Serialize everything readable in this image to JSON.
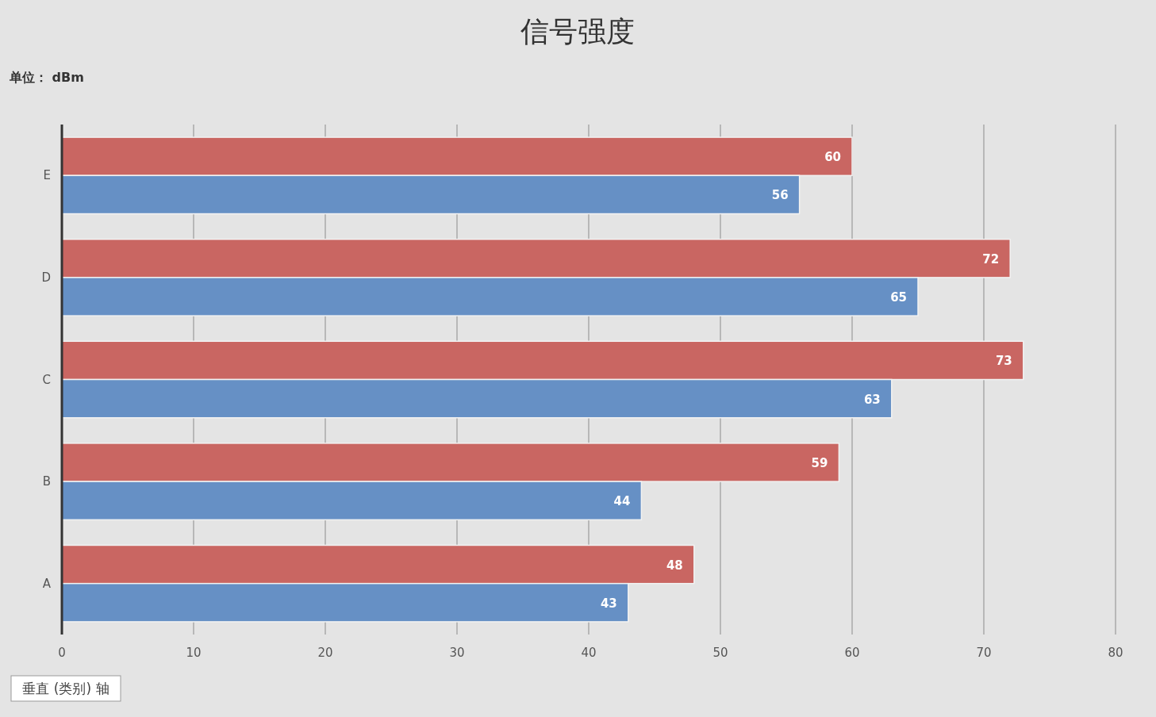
{
  "chart_data": {
    "type": "bar",
    "orientation": "horizontal",
    "title": "信号强度",
    "subtitle": "单位： dBm",
    "categories": [
      "E",
      "D",
      "C",
      "B",
      "A"
    ],
    "series": [
      {
        "color": "#c96662",
        "values": [
          60,
          72,
          73,
          59,
          48
        ]
      },
      {
        "color": "#6690c5",
        "values": [
          56,
          65,
          63,
          44,
          43
        ]
      }
    ],
    "xlim": [
      0,
      80
    ],
    "xticks": [
      0,
      10,
      20,
      30,
      40,
      50,
      60,
      70,
      80
    ],
    "grid": "x",
    "data_labels": true,
    "annotations": [
      "垂直 (类别) 轴"
    ]
  }
}
